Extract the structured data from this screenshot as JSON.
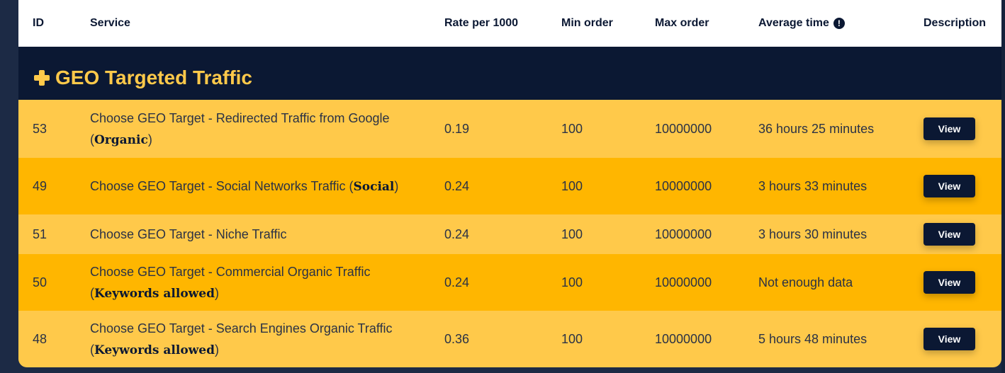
{
  "headers": {
    "id": "ID",
    "service": "Service",
    "rate": "Rate per 1000",
    "min": "Min order",
    "max": "Max order",
    "avg": "Average time",
    "desc": "Description"
  },
  "category": {
    "title": "GEO Targeted Traffic",
    "icon": "plus-icon"
  },
  "rows": [
    {
      "id": "53",
      "service": "Choose GEO Target - Redirected Traffic from Google",
      "tag": "Organic",
      "rate": "0.19",
      "min": "100",
      "max": "10000000",
      "avg": "36 hours 25 minutes",
      "button": "View"
    },
    {
      "id": "49",
      "service": "Choose GEO Target - Social Networks Traffic",
      "tag": "Social",
      "rate": "0.24",
      "min": "100",
      "max": "10000000",
      "avg": "3 hours 33 minutes",
      "button": "View"
    },
    {
      "id": "51",
      "service": "Choose GEO Target - Niche Traffic",
      "tag": "",
      "rate": "0.24",
      "min": "100",
      "max": "10000000",
      "avg": "3 hours 30 minutes",
      "button": "View"
    },
    {
      "id": "50",
      "service": "Choose GEO Target - Commercial Organic Traffic",
      "tag": "Keywords allowed",
      "rate": "0.24",
      "min": "100",
      "max": "10000000",
      "avg": "Not enough data",
      "button": "View"
    },
    {
      "id": "48",
      "service": "Choose GEO Target - Search Engines Organic Traffic",
      "tag": "Keywords allowed",
      "rate": "0.36",
      "min": "100",
      "max": "10000000",
      "avg": "5 hours 48 minutes",
      "button": "View"
    }
  ],
  "colors": {
    "navy": "#0b1833",
    "row_light": "#ffc94a",
    "row_dark": "#ffb600",
    "accent": "#ffc94a"
  }
}
